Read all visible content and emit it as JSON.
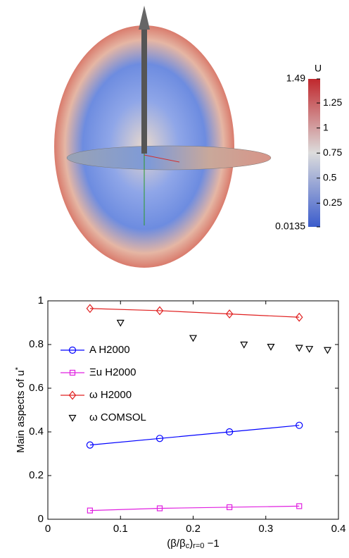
{
  "chart_data": [
    {
      "type": "colorbar",
      "title": "U",
      "ylim": [
        0.0135,
        1.49
      ],
      "yticks": [
        0.0135,
        0.25,
        0.5,
        0.75,
        1,
        1.25,
        1.49
      ],
      "colors": [
        "#3b5ccc",
        "#dcdcdc",
        "#c0282d"
      ]
    },
    {
      "type": "line",
      "xlabel": [
        "(β/β",
        "c",
        ")",
        "r=0",
        " −1"
      ],
      "ylabel": [
        "Main aspects of u",
        "*"
      ],
      "xlim": [
        0,
        0.4
      ],
      "xticks": [
        0,
        0.1,
        0.2,
        0.3,
        0.4
      ],
      "ylim": [
        0,
        1
      ],
      "yticks": [
        0,
        0.2,
        0.4,
        0.6,
        0.8,
        1
      ],
      "legend": "center left",
      "series": [
        {
          "name": "A H2000",
          "color": "#0000ff",
          "marker": "o",
          "line": true,
          "x": [
            0.058,
            0.154,
            0.25,
            0.346
          ],
          "values": [
            0.34,
            0.37,
            0.4,
            0.43
          ]
        },
        {
          "name": "Ξu H2000",
          "color": "#e020e0",
          "marker": "s",
          "line": true,
          "x": [
            0.058,
            0.154,
            0.25,
            0.346
          ],
          "values": [
            0.04,
            0.05,
            0.055,
            0.06
          ]
        },
        {
          "name": "ω H2000",
          "color": "#e02020",
          "marker": "d",
          "line": true,
          "x": [
            0.058,
            0.154,
            0.25,
            0.346
          ],
          "values": [
            0.965,
            0.955,
            0.94,
            0.925
          ]
        },
        {
          "name": "ω COMSOL",
          "color": "#000000",
          "marker": "v",
          "line": false,
          "x": [
            0.1,
            0.2,
            0.27,
            0.307,
            0.346,
            0.36,
            0.385
          ],
          "values": [
            0.9,
            0.83,
            0.8,
            0.79,
            0.785,
            0.78,
            0.775
          ]
        }
      ]
    }
  ]
}
